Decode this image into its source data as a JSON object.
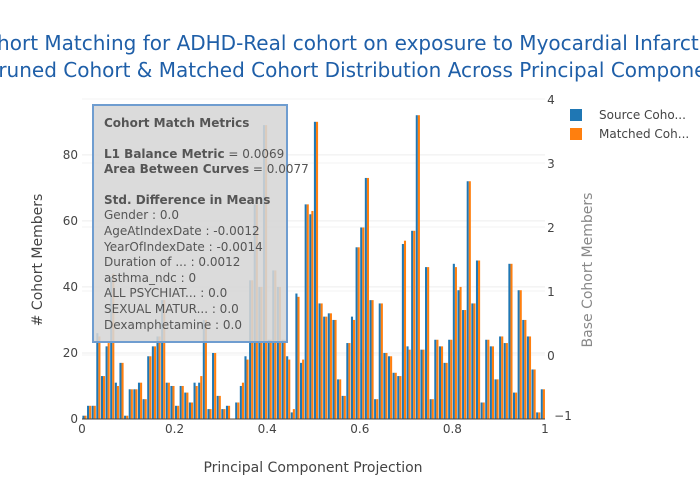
{
  "chart_data": {
    "type": "bar",
    "title_lines": [
      "Cohort Matching for ADHD-Real cohort on exposure to Myocardial Infarction",
      "- Pruned Cohort & Matched Cohort Distribution Across Principal Component"
    ],
    "xlabel": "Principal Component Projection",
    "ylabel": "# Cohort Members",
    "y2label": "Base Cohort Members",
    "xlim": [
      0,
      1
    ],
    "ylim": [
      0,
      96
    ],
    "y2lim": [
      -1,
      4
    ],
    "x_ticks": [
      "0",
      "0.2",
      "0.4",
      "0.6",
      "0.8",
      "1"
    ],
    "x_tick_values": [
      0,
      0.2,
      0.4,
      0.6,
      0.8,
      1
    ],
    "y_ticks": [
      "0",
      "20",
      "40",
      "60",
      "80"
    ],
    "y_tick_values": [
      0,
      20,
      40,
      60,
      80
    ],
    "y2_ticks": [
      "4",
      "3",
      "2",
      "1",
      "0",
      "−1"
    ],
    "y2_tick_values": [
      4,
      3,
      2,
      1,
      0,
      -1
    ],
    "grid": true,
    "legend_position": "top-right",
    "colors": {
      "source": "#1f77b4",
      "matched": "#ff7f0e",
      "title": "#1f5fa8"
    },
    "series": [
      {
        "name": "Source Coho...",
        "values": [
          1,
          4,
          4,
          26,
          13,
          22,
          43,
          11,
          17,
          1,
          9,
          9,
          11,
          6,
          19,
          22,
          25,
          36,
          11,
          10,
          4,
          10,
          8,
          5,
          11,
          11,
          30,
          3,
          20,
          7,
          3,
          4,
          0,
          5,
          10,
          19,
          42,
          65,
          40,
          89,
          24,
          45,
          40,
          24,
          19,
          2,
          38,
          17,
          65,
          62,
          90,
          35,
          31,
          32,
          30,
          12,
          7,
          23,
          31,
          52,
          58,
          73,
          36,
          6,
          35,
          20,
          19,
          14,
          13,
          53,
          22,
          57,
          92,
          21,
          46,
          6,
          24,
          22,
          17,
          24,
          47,
          39,
          33,
          72,
          35,
          48,
          5,
          24,
          22,
          12,
          25,
          23,
          47,
          8,
          39,
          30,
          25,
          15,
          2,
          9
        ]
      },
      {
        "name": "Matched Coh...",
        "values": [
          1,
          4,
          4,
          25,
          13,
          23,
          44,
          10,
          17,
          1,
          9,
          9,
          11,
          6,
          19,
          22,
          25,
          36,
          11,
          10,
          4,
          10,
          8,
          5,
          10,
          13,
          30,
          3,
          20,
          7,
          3,
          4,
          0,
          5,
          11,
          18,
          42,
          65,
          40,
          89,
          24,
          45,
          40,
          24,
          18,
          3,
          37,
          18,
          65,
          63,
          90,
          35,
          31,
          32,
          30,
          12,
          7,
          23,
          30,
          52,
          58,
          73,
          36,
          6,
          35,
          20,
          19,
          14,
          13,
          54,
          21,
          57,
          92,
          21,
          46,
          6,
          24,
          22,
          17,
          24,
          46,
          40,
          33,
          72,
          35,
          48,
          5,
          24,
          22,
          12,
          25,
          23,
          47,
          8,
          39,
          30,
          25,
          15,
          2,
          9
        ]
      }
    ]
  },
  "metrics": {
    "heading": "Cohort Match Metrics",
    "l1_label": "L1 Balance Metric",
    "l1_value": " = 0.0069",
    "abc_label": "Area Between Curves",
    "abc_value": " = 0.0077",
    "std_heading": "Std. Difference in Means",
    "items": [
      "Gender : 0.0",
      "AgeAtIndexDate : -0.0012",
      "YearOfIndexDate : -0.0014",
      "Duration of ... : 0.0012",
      "asthma_ndc : 0",
      "ALL PSYCHIAT... : 0.0",
      "SEXUAL MATUR... : 0.0",
      "Dexamphetamine : 0.0"
    ]
  }
}
